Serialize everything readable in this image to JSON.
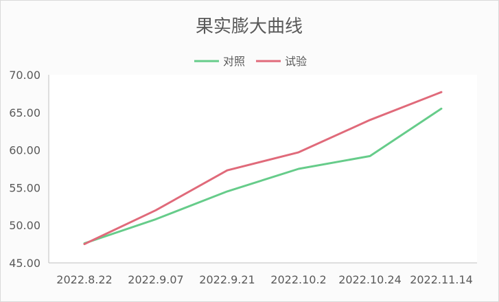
{
  "chart_data": {
    "type": "line",
    "title": "果实膨大曲线",
    "categories": [
      "2022.8.22",
      "2022.9.07",
      "2022.9.21",
      "2022.10.2",
      "2022.10.24",
      "2022.11.14"
    ],
    "series": [
      {
        "name": "对照",
        "color": "#66cc8a",
        "values": [
          47.6,
          50.8,
          54.5,
          57.5,
          59.2,
          65.5
        ]
      },
      {
        "name": "试验",
        "color": "#e06a7a",
        "values": [
          47.5,
          52.0,
          57.3,
          59.7,
          64.0,
          67.7
        ]
      }
    ],
    "ylim": [
      45,
      70
    ],
    "yticks": [
      "45.00",
      "50.00",
      "55.00",
      "60.00",
      "65.00",
      "70.00"
    ],
    "xlabel": "",
    "ylabel": "",
    "legend_position": "top-center",
    "grid": false
  }
}
